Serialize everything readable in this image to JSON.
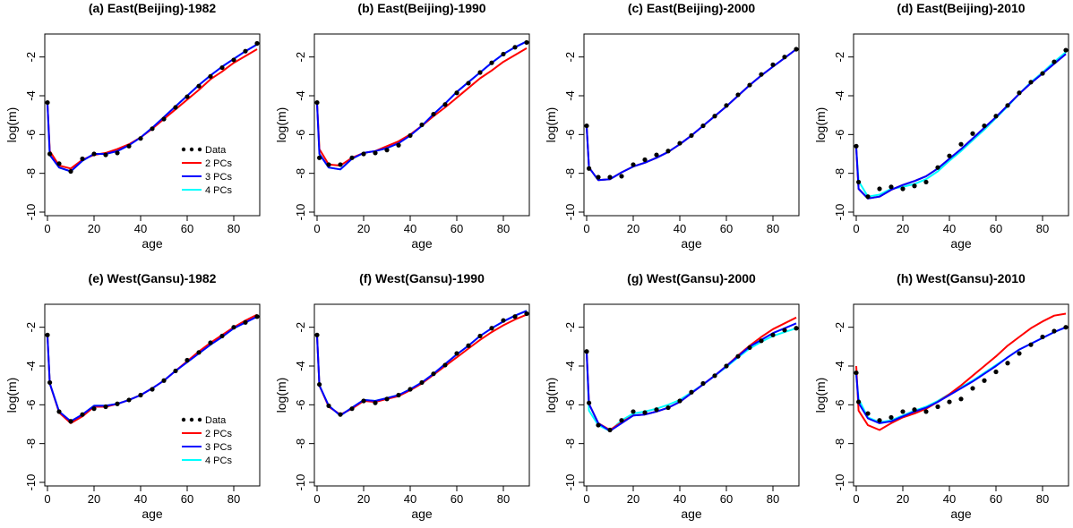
{
  "colors": {
    "data": "#000000",
    "pc2": "#ff0000",
    "pc3": "#0000ff",
    "pc4": "#00ffff"
  },
  "legend_labels": [
    "Data",
    "2 PCs",
    "3 PCs",
    "4 PCs"
  ],
  "chart_data": [
    {
      "type": "line",
      "title": "(a) East(Beijing)-1982",
      "xlabel": "age",
      "ylabel": "log(m)",
      "xlim": [
        0,
        90
      ],
      "ylim": [
        -10,
        -1
      ],
      "xticks": [
        0,
        20,
        40,
        60,
        80
      ],
      "yticks": [
        -10,
        -8,
        -6,
        -4,
        -2
      ],
      "legend": "bottom-right",
      "x": [
        0,
        1,
        5,
        10,
        15,
        20,
        25,
        30,
        35,
        40,
        45,
        50,
        55,
        60,
        65,
        70,
        75,
        80,
        85,
        90
      ],
      "data_points": [
        -4.35,
        -7.0,
        -7.5,
        -7.9,
        -7.25,
        -7.0,
        -7.05,
        -6.95,
        -6.6,
        -6.2,
        -5.7,
        -5.2,
        -4.6,
        -4.05,
        -3.5,
        -3.0,
        -2.55,
        -2.15,
        -1.7,
        -1.3
      ],
      "series": [
        {
          "name": "2 PCs",
          "values": [
            -4.4,
            -6.85,
            -7.6,
            -7.75,
            -7.3,
            -7.05,
            -6.95,
            -6.75,
            -6.5,
            -6.15,
            -5.7,
            -5.2,
            -4.7,
            -4.2,
            -3.7,
            -3.15,
            -2.75,
            -2.3,
            -1.95,
            -1.6
          ]
        },
        {
          "name": "3 PCs",
          "values": [
            -4.4,
            -7.05,
            -7.7,
            -7.9,
            -7.35,
            -7.0,
            -7.0,
            -6.85,
            -6.55,
            -6.15,
            -5.65,
            -5.1,
            -4.55,
            -4.0,
            -3.45,
            -2.95,
            -2.5,
            -2.1,
            -1.7,
            -1.35
          ]
        },
        {
          "name": "4 PCs",
          "values": [
            -4.4,
            -7.05,
            -7.7,
            -7.9,
            -7.35,
            -7.0,
            -7.0,
            -6.85,
            -6.55,
            -6.15,
            -5.65,
            -5.1,
            -4.55,
            -4.0,
            -3.45,
            -2.95,
            -2.5,
            -2.1,
            -1.7,
            -1.35
          ]
        }
      ]
    },
    {
      "type": "line",
      "title": "(b) East(Beijing)-1990",
      "xlabel": "age",
      "ylabel": "log(m)",
      "xlim": [
        0,
        90
      ],
      "ylim": [
        -10,
        -1
      ],
      "xticks": [
        0,
        20,
        40,
        60,
        80
      ],
      "yticks": [
        -10,
        -8,
        -6,
        -4,
        -2
      ],
      "x": [
        0,
        1,
        5,
        10,
        15,
        20,
        25,
        30,
        35,
        40,
        45,
        50,
        55,
        60,
        65,
        70,
        75,
        80,
        85,
        90
      ],
      "data_points": [
        -4.35,
        -7.2,
        -7.55,
        -7.55,
        -7.2,
        -7.0,
        -6.95,
        -6.8,
        -6.55,
        -6.05,
        -5.5,
        -4.95,
        -4.45,
        -3.85,
        -3.35,
        -2.8,
        -2.3,
        -1.85,
        -1.5,
        -1.25
      ],
      "series": [
        {
          "name": "2 PCs",
          "values": [
            -4.4,
            -6.75,
            -7.55,
            -7.6,
            -7.2,
            -6.95,
            -6.85,
            -6.6,
            -6.35,
            -6.0,
            -5.55,
            -5.05,
            -4.6,
            -4.1,
            -3.6,
            -3.1,
            -2.7,
            -2.25,
            -1.9,
            -1.55
          ]
        },
        {
          "name": "3 PCs",
          "values": [
            -4.4,
            -7.0,
            -7.7,
            -7.8,
            -7.25,
            -6.95,
            -6.85,
            -6.7,
            -6.45,
            -6.05,
            -5.55,
            -4.95,
            -4.4,
            -3.8,
            -3.3,
            -2.8,
            -2.3,
            -1.85,
            -1.5,
            -1.2
          ]
        },
        {
          "name": "4 PCs",
          "values": [
            -4.4,
            -7.0,
            -7.7,
            -7.8,
            -7.25,
            -6.95,
            -6.85,
            -6.7,
            -6.45,
            -6.05,
            -5.55,
            -4.95,
            -4.4,
            -3.8,
            -3.3,
            -2.8,
            -2.3,
            -1.85,
            -1.5,
            -1.2
          ]
        }
      ]
    },
    {
      "type": "line",
      "title": "(c) East(Beijing)-2000",
      "xlabel": "age",
      "ylabel": "log(m)",
      "xlim": [
        0,
        90
      ],
      "ylim": [
        -10,
        -1
      ],
      "xticks": [
        0,
        20,
        40,
        60,
        80
      ],
      "yticks": [
        -10,
        -8,
        -6,
        -4,
        -2
      ],
      "x": [
        0,
        1,
        5,
        10,
        15,
        20,
        25,
        30,
        35,
        40,
        45,
        50,
        55,
        60,
        65,
        70,
        75,
        80,
        85,
        90
      ],
      "data_points": [
        -5.55,
        -7.75,
        -8.2,
        -8.2,
        -8.15,
        -7.55,
        -7.3,
        -7.05,
        -6.85,
        -6.45,
        -6.05,
        -5.55,
        -5.05,
        -4.5,
        -3.95,
        -3.45,
        -2.9,
        -2.4,
        -2.0,
        -1.6
      ],
      "series": [
        {
          "name": "2 PCs",
          "values": [
            -5.6,
            -7.7,
            -8.35,
            -8.3,
            -7.95,
            -7.65,
            -7.45,
            -7.2,
            -6.9,
            -6.5,
            -6.05,
            -5.55,
            -5.05,
            -4.55,
            -4.0,
            -3.45,
            -2.95,
            -2.5,
            -2.05,
            -1.6
          ]
        },
        {
          "name": "3 PCs",
          "values": [
            -5.6,
            -7.7,
            -8.35,
            -8.3,
            -7.95,
            -7.65,
            -7.45,
            -7.2,
            -6.9,
            -6.5,
            -6.05,
            -5.55,
            -5.05,
            -4.55,
            -4.0,
            -3.45,
            -2.95,
            -2.5,
            -2.05,
            -1.6
          ]
        },
        {
          "name": "4 PCs",
          "values": [
            -5.6,
            -7.7,
            -8.35,
            -8.3,
            -7.95,
            -7.65,
            -7.45,
            -7.2,
            -6.9,
            -6.5,
            -6.05,
            -5.55,
            -5.05,
            -4.55,
            -4.0,
            -3.45,
            -2.95,
            -2.5,
            -2.05,
            -1.6
          ]
        }
      ]
    },
    {
      "type": "line",
      "title": "(d) East(Beijing)-2010",
      "xlabel": "age",
      "ylabel": "log(m)",
      "xlim": [
        0,
        90
      ],
      "ylim": [
        -10,
        -1
      ],
      "xticks": [
        0,
        20,
        40,
        60,
        80
      ],
      "yticks": [
        -10,
        -8,
        -6,
        -4,
        -2
      ],
      "x": [
        0,
        1,
        5,
        10,
        15,
        20,
        25,
        30,
        35,
        40,
        45,
        50,
        55,
        60,
        65,
        70,
        75,
        80,
        85,
        90
      ],
      "data_points": [
        -6.6,
        -8.45,
        -9.2,
        -8.8,
        -8.7,
        -8.8,
        -8.65,
        -8.45,
        -7.7,
        -7.1,
        -6.5,
        -5.95,
        -5.55,
        -5.05,
        -4.5,
        -3.85,
        -3.3,
        -2.85,
        -2.25,
        -1.65
      ],
      "series": [
        {
          "name": "2 PCs",
          "values": [
            -6.7,
            -8.8,
            -9.3,
            -9.2,
            -8.85,
            -8.6,
            -8.4,
            -8.15,
            -7.75,
            -7.25,
            -6.75,
            -6.2,
            -5.65,
            -5.1,
            -4.5,
            -3.9,
            -3.35,
            -2.85,
            -2.35,
            -1.85
          ]
        },
        {
          "name": "3 PCs",
          "values": [
            -6.7,
            -8.8,
            -9.3,
            -9.2,
            -8.85,
            -8.6,
            -8.4,
            -8.15,
            -7.75,
            -7.25,
            -6.75,
            -6.2,
            -5.65,
            -5.1,
            -4.5,
            -3.9,
            -3.35,
            -2.85,
            -2.35,
            -1.85
          ]
        },
        {
          "name": "4 PCs",
          "values": [
            -6.7,
            -8.4,
            -9.2,
            -9.1,
            -8.8,
            -8.7,
            -8.55,
            -8.3,
            -7.9,
            -7.35,
            -6.85,
            -6.3,
            -5.75,
            -5.15,
            -4.55,
            -3.9,
            -3.3,
            -2.8,
            -2.25,
            -1.75
          ]
        }
      ]
    },
    {
      "type": "line",
      "title": "(e) West(Gansu)-1982",
      "xlabel": "age",
      "ylabel": "log(m)",
      "xlim": [
        0,
        90
      ],
      "ylim": [
        -10,
        -1
      ],
      "xticks": [
        0,
        20,
        40,
        60,
        80
      ],
      "yticks": [
        -10,
        -8,
        -6,
        -4,
        -2
      ],
      "legend": "bottom-right",
      "x": [
        0,
        1,
        5,
        10,
        15,
        20,
        25,
        30,
        35,
        40,
        45,
        50,
        55,
        60,
        65,
        70,
        75,
        80,
        85,
        90
      ],
      "data_points": [
        -2.4,
        -4.85,
        -6.35,
        -6.85,
        -6.5,
        -6.2,
        -6.1,
        -5.95,
        -5.75,
        -5.5,
        -5.2,
        -4.75,
        -4.25,
        -3.7,
        -3.3,
        -2.8,
        -2.45,
        -2.0,
        -1.75,
        -1.45
      ],
      "series": [
        {
          "name": "2 PCs",
          "values": [
            -2.45,
            -4.9,
            -6.4,
            -6.95,
            -6.6,
            -6.1,
            -6.1,
            -5.95,
            -5.75,
            -5.5,
            -5.15,
            -4.75,
            -4.25,
            -3.75,
            -3.25,
            -2.8,
            -2.4,
            -2.0,
            -1.65,
            -1.35
          ]
        },
        {
          "name": "3 PCs",
          "values": [
            -2.45,
            -4.9,
            -6.35,
            -6.85,
            -6.5,
            -6.05,
            -6.05,
            -5.95,
            -5.75,
            -5.5,
            -5.15,
            -4.75,
            -4.25,
            -3.8,
            -3.35,
            -2.9,
            -2.5,
            -2.05,
            -1.75,
            -1.45
          ]
        },
        {
          "name": "4 PCs",
          "values": [
            -2.45,
            -4.9,
            -6.35,
            -6.85,
            -6.5,
            -6.05,
            -6.05,
            -5.95,
            -5.75,
            -5.5,
            -5.15,
            -4.75,
            -4.25,
            -3.8,
            -3.35,
            -2.9,
            -2.5,
            -2.05,
            -1.75,
            -1.45
          ]
        }
      ]
    },
    {
      "type": "line",
      "title": "(f) West(Gansu)-1990",
      "xlabel": "age",
      "ylabel": "log(m)",
      "xlim": [
        0,
        90
      ],
      "ylim": [
        -10,
        -1
      ],
      "xticks": [
        0,
        20,
        40,
        60,
        80
      ],
      "yticks": [
        -10,
        -8,
        -6,
        -4,
        -2
      ],
      "x": [
        0,
        1,
        5,
        10,
        15,
        20,
        25,
        30,
        35,
        40,
        45,
        50,
        55,
        60,
        65,
        70,
        75,
        80,
        85,
        90
      ],
      "data_points": [
        -2.4,
        -4.95,
        -6.05,
        -6.5,
        -6.2,
        -5.8,
        -5.9,
        -5.7,
        -5.5,
        -5.2,
        -4.85,
        -4.4,
        -3.95,
        -3.35,
        -2.95,
        -2.45,
        -2.05,
        -1.65,
        -1.45,
        -1.3
      ],
      "series": [
        {
          "name": "2 PCs",
          "values": [
            -2.45,
            -5.0,
            -6.1,
            -6.5,
            -6.2,
            -5.8,
            -5.85,
            -5.7,
            -5.55,
            -5.25,
            -4.9,
            -4.45,
            -4.0,
            -3.55,
            -3.1,
            -2.65,
            -2.25,
            -1.9,
            -1.6,
            -1.35
          ]
        },
        {
          "name": "3 PCs",
          "values": [
            -2.45,
            -5.0,
            -6.05,
            -6.55,
            -6.15,
            -5.75,
            -5.8,
            -5.65,
            -5.5,
            -5.2,
            -4.85,
            -4.4,
            -3.9,
            -3.4,
            -2.95,
            -2.45,
            -2.05,
            -1.7,
            -1.4,
            -1.15
          ]
        },
        {
          "name": "4 PCs",
          "values": [
            -2.45,
            -5.0,
            -6.05,
            -6.55,
            -6.15,
            -5.75,
            -5.8,
            -5.65,
            -5.5,
            -5.2,
            -4.85,
            -4.4,
            -3.9,
            -3.4,
            -2.95,
            -2.45,
            -2.05,
            -1.7,
            -1.4,
            -1.15
          ]
        }
      ]
    },
    {
      "type": "line",
      "title": "(g) West(Gansu)-2000",
      "xlabel": "age",
      "ylabel": "log(m)",
      "xlim": [
        0,
        90
      ],
      "ylim": [
        -10,
        -1
      ],
      "xticks": [
        0,
        20,
        40,
        60,
        80
      ],
      "yticks": [
        -10,
        -8,
        -6,
        -4,
        -2
      ],
      "x": [
        0,
        1,
        5,
        10,
        15,
        20,
        25,
        30,
        35,
        40,
        45,
        50,
        55,
        60,
        65,
        70,
        75,
        80,
        85,
        90
      ],
      "data_points": [
        -3.25,
        -5.9,
        -7.05,
        -7.3,
        -6.8,
        -6.35,
        -6.4,
        -6.25,
        -6.15,
        -5.8,
        -5.35,
        -4.9,
        -4.5,
        -4.0,
        -3.5,
        -3.05,
        -2.7,
        -2.4,
        -2.15,
        -2.05
      ],
      "series": [
        {
          "name": "2 PCs",
          "values": [
            -3.3,
            -5.95,
            -6.95,
            -7.3,
            -6.9,
            -6.55,
            -6.5,
            -6.35,
            -6.15,
            -5.85,
            -5.4,
            -4.95,
            -4.5,
            -4.0,
            -3.45,
            -2.95,
            -2.5,
            -2.1,
            -1.8,
            -1.5
          ]
        },
        {
          "name": "3 PCs",
          "values": [
            -3.3,
            -5.95,
            -6.95,
            -7.35,
            -6.95,
            -6.55,
            -6.5,
            -6.35,
            -6.15,
            -5.85,
            -5.4,
            -4.95,
            -4.5,
            -4.0,
            -3.5,
            -3.0,
            -2.65,
            -2.3,
            -2.05,
            -1.8
          ]
        },
        {
          "name": "4 PCs",
          "values": [
            -3.3,
            -6.3,
            -7.05,
            -7.35,
            -6.8,
            -6.45,
            -6.35,
            -6.2,
            -6.0,
            -5.75,
            -5.35,
            -4.95,
            -4.5,
            -4.05,
            -3.55,
            -3.1,
            -2.75,
            -2.45,
            -2.25,
            -2.05
          ]
        }
      ]
    },
    {
      "type": "line",
      "title": "(h) West(Gansu)-2010",
      "xlabel": "age",
      "ylabel": "log(m)",
      "xlim": [
        0,
        90
      ],
      "ylim": [
        -10,
        -1
      ],
      "xticks": [
        0,
        20,
        40,
        60,
        80
      ],
      "yticks": [
        -10,
        -8,
        -6,
        -4,
        -2
      ],
      "x": [
        0,
        1,
        5,
        10,
        15,
        20,
        25,
        30,
        35,
        40,
        45,
        50,
        55,
        60,
        65,
        70,
        75,
        80,
        85,
        90
      ],
      "data_points": [
        -4.35,
        -5.85,
        -6.45,
        -6.8,
        -6.65,
        -6.35,
        -6.25,
        -6.35,
        -6.1,
        -5.85,
        -5.7,
        -5.15,
        -4.75,
        -4.3,
        -3.85,
        -3.35,
        -2.9,
        -2.5,
        -2.2,
        -2.0
      ],
      "series": [
        {
          "name": "2 PCs",
          "values": [
            -4.0,
            -6.3,
            -7.05,
            -7.3,
            -6.95,
            -6.65,
            -6.45,
            -6.2,
            -5.85,
            -5.45,
            -5.0,
            -4.5,
            -4.0,
            -3.5,
            -2.95,
            -2.5,
            -2.05,
            -1.7,
            -1.4,
            -1.3
          ]
        },
        {
          "name": "3 PCs",
          "values": [
            -4.4,
            -5.9,
            -6.7,
            -6.95,
            -6.85,
            -6.6,
            -6.35,
            -6.15,
            -5.85,
            -5.5,
            -5.15,
            -4.8,
            -4.4,
            -4.0,
            -3.55,
            -3.15,
            -2.85,
            -2.55,
            -2.25,
            -2.0
          ]
        },
        {
          "name": "4 PCs",
          "values": [
            -4.4,
            -5.7,
            -6.65,
            -6.9,
            -6.8,
            -6.55,
            -6.3,
            -6.1,
            -5.8,
            -5.45,
            -5.1,
            -4.75,
            -4.35,
            -3.95,
            -3.55,
            -3.15,
            -2.85,
            -2.55,
            -2.25,
            -2.0
          ]
        }
      ]
    }
  ]
}
